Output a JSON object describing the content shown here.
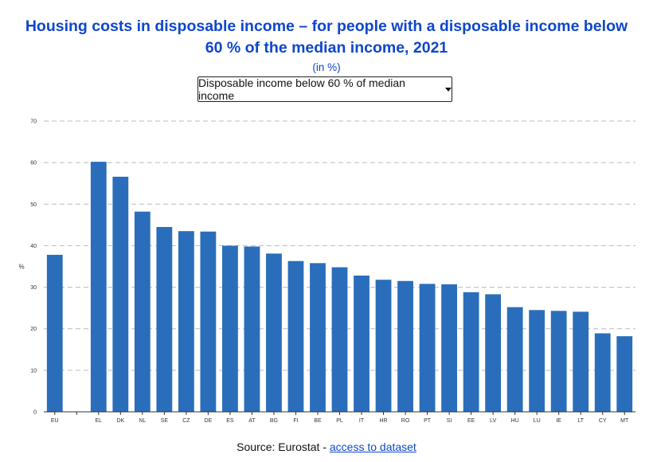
{
  "header": {
    "title": "Housing costs in disposable income –  for people with a disposable income below 60 % of the median income, 2021",
    "subtitle": "(in %)"
  },
  "filter": {
    "selected": "Disposable income below 60 % of median income"
  },
  "source": {
    "prefix": "Source: Eurostat - ",
    "link_text": "access to dataset"
  },
  "colors": {
    "bar": "#2a6ebb",
    "grid": "#bbbbbb",
    "title": "#0e47cb"
  },
  "chart_data": {
    "type": "bar",
    "title": "Housing costs in disposable income –  for people with a disposable income below 60 % of the median income, 2021",
    "xlabel": "",
    "ylabel": "%",
    "ylim": [
      0,
      70
    ],
    "yticks": [
      0,
      10,
      20,
      30,
      40,
      50,
      60,
      70
    ],
    "grid": true,
    "categories": [
      "EU",
      "",
      "EL",
      "DK",
      "NL",
      "SE",
      "CZ",
      "DE",
      "ES",
      "AT",
      "BG",
      "FI",
      "BE",
      "PL",
      "IT",
      "HR",
      "RO",
      "PT",
      "SI",
      "EE",
      "LV",
      "HU",
      "LU",
      "IE",
      "LT",
      "CY",
      "MT"
    ],
    "values": [
      37.8,
      null,
      60.2,
      56.6,
      48.2,
      44.5,
      43.5,
      43.4,
      40.0,
      39.8,
      38.1,
      36.3,
      35.8,
      34.8,
      32.8,
      31.8,
      31.5,
      30.8,
      30.7,
      28.8,
      28.3,
      25.2,
      24.5,
      24.3,
      24.1,
      18.9,
      18.2
    ]
  }
}
